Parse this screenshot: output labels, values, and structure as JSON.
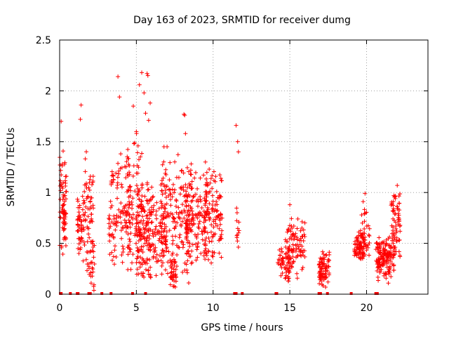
{
  "chart_data": {
    "type": "scatter",
    "title": "Day 163 of 2023, SRMTID for receiver dumg",
    "xlabel": "GPS time / hours",
    "ylabel": "SRMTID / TECUs",
    "xlim": [
      0,
      24
    ],
    "ylim": [
      0,
      2.5
    ],
    "x_ticks": [
      0,
      5,
      10,
      15,
      20
    ],
    "y_ticks": [
      0,
      0.5,
      1,
      1.5,
      2,
      2.5
    ],
    "x_tick_labels": [
      "0",
      "5",
      "10",
      "15",
      "20"
    ],
    "y_tick_labels": [
      "0",
      "0.5",
      "1",
      "1.5",
      "2",
      "2.5"
    ],
    "grid": true,
    "marker": "+",
    "color": "#ff0000",
    "generated_clusters": [
      {
        "x": [
          0.0,
          0.45
        ],
        "y": [
          0.35,
          1.45
        ],
        "n": 60
      },
      {
        "x": [
          0.2,
          0.35
        ],
        "y": [
          0.6,
          1.05
        ],
        "n": 20
      },
      {
        "x": [
          1.15,
          1.45
        ],
        "y": [
          0.35,
          1.0
        ],
        "n": 40
      },
      {
        "x": [
          1.45,
          2.2
        ],
        "y": [
          0.1,
          1.45
        ],
        "n": 70
      },
      {
        "x": [
          1.9,
          2.3
        ],
        "y": [
          0.0,
          0.55
        ],
        "n": 25
      },
      {
        "x": [
          3.2,
          4.6
        ],
        "y": [
          0.15,
          1.5
        ],
        "n": 120
      },
      {
        "x": [
          4.4,
          5.4
        ],
        "y": [
          0.1,
          1.65
        ],
        "n": 90
      },
      {
        "x": [
          5.0,
          6.0
        ],
        "y": [
          0.05,
          1.2
        ],
        "n": 100
      },
      {
        "x": [
          5.4,
          7.0
        ],
        "y": [
          0.1,
          1.1
        ],
        "n": 110
      },
      {
        "x": [
          6.6,
          8.6
        ],
        "y": [
          0.05,
          1.45
        ],
        "n": 180
      },
      {
        "x": [
          7.2,
          7.6
        ],
        "y": [
          0.0,
          0.4
        ],
        "n": 40
      },
      {
        "x": [
          8.2,
          9.6
        ],
        "y": [
          0.2,
          1.3
        ],
        "n": 130
      },
      {
        "x": [
          9.4,
          10.6
        ],
        "y": [
          0.25,
          1.25
        ],
        "n": 120
      },
      {
        "x": [
          11.5,
          11.7
        ],
        "y": [
          0.35,
          1.0
        ],
        "n": 12
      },
      {
        "x": [
          14.2,
          15.0
        ],
        "y": [
          0.1,
          0.55
        ],
        "n": 60
      },
      {
        "x": [
          14.8,
          16.0
        ],
        "y": [
          0.15,
          0.8
        ],
        "n": 90
      },
      {
        "x": [
          16.9,
          17.6
        ],
        "y": [
          0.05,
          0.45
        ],
        "n": 80
      },
      {
        "x": [
          19.2,
          20.0
        ],
        "y": [
          0.3,
          0.65
        ],
        "n": 80
      },
      {
        "x": [
          19.6,
          20.2
        ],
        "y": [
          0.2,
          0.95
        ],
        "n": 30
      },
      {
        "x": [
          20.6,
          21.8
        ],
        "y": [
          0.1,
          0.6
        ],
        "n": 150
      },
      {
        "x": [
          21.6,
          22.2
        ],
        "y": [
          0.25,
          1.05
        ],
        "n": 70
      }
    ],
    "notable_points": [
      {
        "x": 0.1,
        "y": 1.7
      },
      {
        "x": 1.4,
        "y": 1.86
      },
      {
        "x": 1.35,
        "y": 1.72
      },
      {
        "x": 3.8,
        "y": 2.14
      },
      {
        "x": 3.9,
        "y": 1.94
      },
      {
        "x": 5.35,
        "y": 2.18
      },
      {
        "x": 5.7,
        "y": 2.17
      },
      {
        "x": 5.75,
        "y": 2.15
      },
      {
        "x": 5.2,
        "y": 2.06
      },
      {
        "x": 5.5,
        "y": 1.98
      },
      {
        "x": 5.9,
        "y": 1.88
      },
      {
        "x": 5.6,
        "y": 1.78
      },
      {
        "x": 5.8,
        "y": 1.71
      },
      {
        "x": 4.8,
        "y": 1.85
      },
      {
        "x": 5.0,
        "y": 1.6
      },
      {
        "x": 8.1,
        "y": 1.77
      },
      {
        "x": 8.15,
        "y": 1.76
      },
      {
        "x": 8.2,
        "y": 1.58
      },
      {
        "x": 11.5,
        "y": 1.66
      },
      {
        "x": 11.6,
        "y": 1.5
      },
      {
        "x": 11.65,
        "y": 1.4
      },
      {
        "x": 15.0,
        "y": 0.88
      },
      {
        "x": 19.9,
        "y": 0.99
      },
      {
        "x": 22.0,
        "y": 1.07
      },
      {
        "x": 7.0,
        "y": 1.45
      },
      {
        "x": 6.8,
        "y": 1.45
      },
      {
        "x": 9.5,
        "y": 1.3
      }
    ],
    "zero_markers_x": [
      0.05,
      0.1,
      0.7,
      1.15,
      1.2,
      1.9,
      2.0,
      2.75,
      3.35,
      4.75,
      5.6,
      11.4,
      11.5,
      11.9,
      14.1,
      14.15,
      16.9,
      17.0,
      17.45,
      19.0,
      20.6,
      20.7
    ]
  }
}
